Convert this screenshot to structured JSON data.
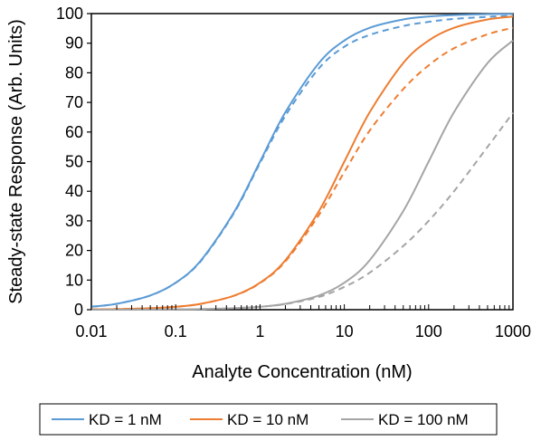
{
  "chart_data": {
    "type": "line",
    "title": "",
    "xlabel": "Analyte Concentration (nM)",
    "ylabel": "Steady-state Response (Arb. Units)",
    "x_scale": "log",
    "xlim": [
      0.01,
      1000
    ],
    "ylim": [
      0,
      100
    ],
    "x_ticks": [
      {
        "value": 0.01,
        "label": "0.01"
      },
      {
        "value": 0.1,
        "label": "0.1"
      },
      {
        "value": 1,
        "label": "1"
      },
      {
        "value": 10,
        "label": "10"
      },
      {
        "value": 100,
        "label": "100"
      },
      {
        "value": 1000,
        "label": "1000"
      }
    ],
    "y_ticks": [
      {
        "value": 0,
        "label": "0"
      },
      {
        "value": 10,
        "label": "10"
      },
      {
        "value": 20,
        "label": "20"
      },
      {
        "value": 30,
        "label": "30"
      },
      {
        "value": 40,
        "label": "40"
      },
      {
        "value": 50,
        "label": "50"
      },
      {
        "value": 60,
        "label": "60"
      },
      {
        "value": 70,
        "label": "70"
      },
      {
        "value": 80,
        "label": "80"
      },
      {
        "value": 90,
        "label": "90"
      },
      {
        "value": 100,
        "label": "100"
      }
    ],
    "grid": false,
    "legend_position": "bottom",
    "x": [
      0.01,
      0.02,
      0.05,
      0.1,
      0.2,
      0.5,
      1,
      2,
      5,
      10,
      20,
      50,
      100,
      200,
      500,
      1000
    ],
    "series": [
      {
        "name": "KD = 1 nM",
        "color": "#5b9bd5",
        "style": "solid",
        "values": [
          1.0,
          2.0,
          4.8,
          9.1,
          16.7,
          33.3,
          50.0,
          66.7,
          83.3,
          90.9,
          95.2,
          98.0,
          99.0,
          99.5,
          99.8,
          99.9
        ]
      },
      {
        "name": "",
        "color": "#5b9bd5",
        "style": "dashed",
        "values": [
          1.0,
          2.0,
          4.8,
          9.1,
          16.5,
          33.0,
          49.5,
          65.5,
          81.5,
          88.8,
          92.8,
          95.8,
          97.2,
          98.2,
          98.9,
          99.3
        ]
      },
      {
        "name": "KD = 10 nM",
        "color": "#ed7d31",
        "style": "solid",
        "values": [
          0.1,
          0.2,
          0.5,
          1.0,
          2.0,
          4.8,
          9.1,
          16.7,
          33.3,
          50.0,
          66.7,
          83.3,
          90.9,
          95.2,
          98.0,
          99.0
        ]
      },
      {
        "name": "",
        "color": "#ed7d31",
        "style": "dashed",
        "values": [
          0.1,
          0.2,
          0.5,
          1.0,
          2.0,
          4.8,
          9.0,
          16.3,
          32.0,
          46.5,
          60.5,
          74.5,
          82.5,
          88.3,
          93.0,
          95.2
        ]
      },
      {
        "name": "KD = 100 nM",
        "color": "#a5a5a5",
        "style": "solid",
        "values": [
          0.0,
          0.0,
          0.05,
          0.1,
          0.2,
          0.5,
          1.0,
          2.0,
          4.8,
          9.1,
          16.7,
          33.3,
          50.0,
          66.7,
          83.3,
          90.9
        ]
      },
      {
        "name": "",
        "color": "#a5a5a5",
        "style": "dashed",
        "values": [
          0.0,
          0.0,
          0.05,
          0.1,
          0.2,
          0.5,
          1.0,
          1.9,
          4.3,
          7.7,
          12.5,
          21.5,
          30.0,
          40.0,
          55.0,
          66.5
        ]
      }
    ]
  }
}
